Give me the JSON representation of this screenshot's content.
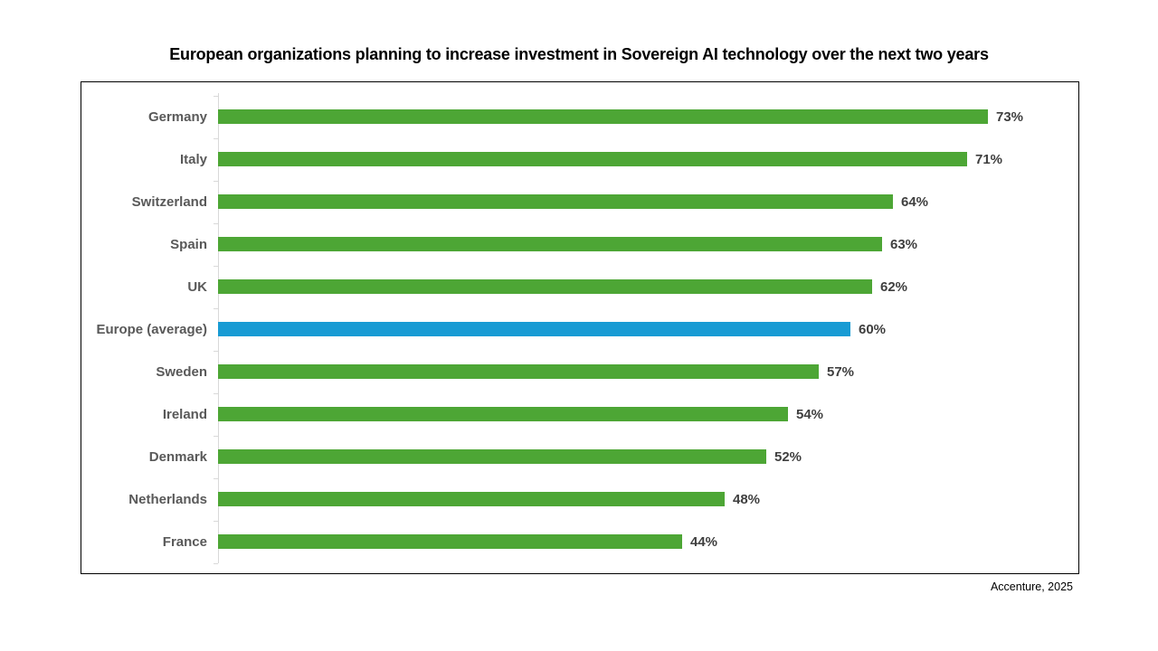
{
  "page": {
    "background": "#ffffff",
    "source_note": "Accenture, 2025"
  },
  "chart_data": {
    "type": "bar",
    "orientation": "horizontal",
    "title": "European organizations planning to increase investment in Sovereign AI technology over the next two years",
    "categories": [
      "Germany",
      "Italy",
      "Switzerland",
      "Spain",
      "UK",
      "Europe (average)",
      "Sweden",
      "Ireland",
      "Denmark",
      "Netherlands",
      "France"
    ],
    "values": [
      73,
      71,
      64,
      63,
      62,
      60,
      57,
      54,
      52,
      48,
      44
    ],
    "value_labels": [
      "73%",
      "71%",
      "64%",
      "63%",
      "62%",
      "60%",
      "57%",
      "54%",
      "52%",
      "48%",
      "44%"
    ],
    "highlight_category": "Europe (average)",
    "xlabel": "",
    "ylabel": "",
    "xlim": [
      0,
      81
    ],
    "grid": false,
    "legend": false,
    "colors": {
      "bar_default": "#4da635",
      "bar_highlight": "#189bd4",
      "category_label": "#595959",
      "value_label": "#3f3f3f",
      "axis": "#d9d9d9",
      "title": "#000000",
      "border": "#000000"
    }
  }
}
